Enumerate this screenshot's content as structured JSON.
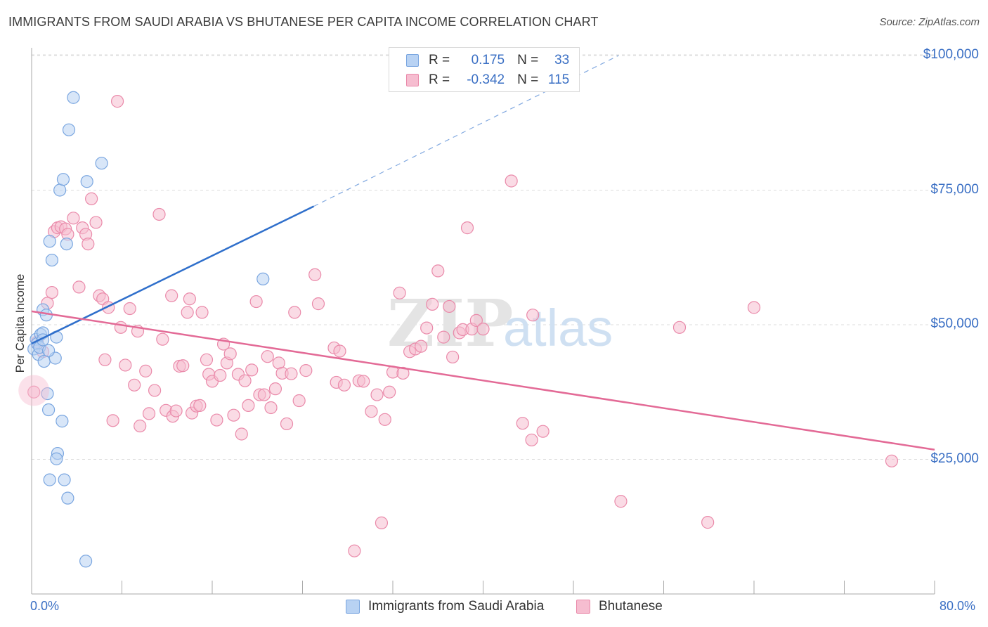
{
  "title": "IMMIGRANTS FROM SAUDI ARABIA VS BHUTANESE PER CAPITA INCOME CORRELATION CHART",
  "source": "Source: ZipAtlas.com",
  "watermark": {
    "zip": "ZIP",
    "atlas": "atlas"
  },
  "colors": {
    "series1_fill": "#b8d2f3",
    "series1_stroke": "#7aa6e0",
    "series1_line": "#2f6fcb",
    "series2_fill": "#f6bdd0",
    "series2_stroke": "#ea8aaa",
    "series2_line": "#e36a96",
    "tick_text": "#3a6fc4",
    "grid": "#dddddd"
  },
  "legend": {
    "rows": [
      {
        "r_label": "R =",
        "r_value": "0.175",
        "n_label": "N =",
        "n_value": "33"
      },
      {
        "r_label": "R =",
        "r_value": "-0.342",
        "n_label": "N =",
        "n_value": "115"
      }
    ]
  },
  "chart_data": {
    "type": "scatter",
    "title": "IMMIGRANTS FROM SAUDI ARABIA VS BHUTANESE PER CAPITA INCOME CORRELATION CHART",
    "xlabel": "",
    "ylabel": "Per Capita Income",
    "xlim": [
      0,
      80
    ],
    "ylim": [
      0,
      105000
    ],
    "x_tick_labels": [
      "0.0%",
      "80.0%"
    ],
    "y_ticks": [
      25000,
      50000,
      75000,
      100000
    ],
    "y_tick_labels": [
      "$25,000",
      "$50,000",
      "$75,000",
      "$100,000"
    ],
    "grid": true,
    "legend_position": "top-center",
    "series": [
      {
        "name": "Immigrants from Saudi Arabia",
        "r": 0.175,
        "n": 33,
        "trend": {
          "x0": 0,
          "y0": 46500,
          "x1_solid": 25,
          "y1_solid": 72000,
          "x1_dashed": 52,
          "y1_dashed": 100000
        },
        "points": [
          [
            0.2,
            45500
          ],
          [
            0.4,
            47300
          ],
          [
            0.5,
            46500
          ],
          [
            0.6,
            44500
          ],
          [
            0.7,
            45800
          ],
          [
            0.8,
            48200
          ],
          [
            1.0,
            48500
          ],
          [
            1.0,
            47200
          ],
          [
            1.0,
            52800
          ],
          [
            1.1,
            43200
          ],
          [
            1.3,
            51800
          ],
          [
            1.4,
            37200
          ],
          [
            1.5,
            34200
          ],
          [
            1.6,
            65500
          ],
          [
            1.8,
            62000
          ],
          [
            1.6,
            21200
          ],
          [
            2.1,
            43800
          ],
          [
            2.2,
            47700
          ],
          [
            2.3,
            26100
          ],
          [
            2.2,
            25100
          ],
          [
            2.5,
            75000
          ],
          [
            2.8,
            77000
          ],
          [
            2.7,
            32100
          ],
          [
            2.9,
            21200
          ],
          [
            3.1,
            65000
          ],
          [
            3.2,
            17800
          ],
          [
            3.3,
            86200
          ],
          [
            3.7,
            92200
          ],
          [
            4.9,
            76600
          ],
          [
            6.2,
            80000
          ],
          [
            4.8,
            6100
          ],
          [
            20.5,
            58500
          ],
          [
            1.5,
            45200
          ]
        ]
      },
      {
        "name": "Bhutanese",
        "r": -0.342,
        "n": 115,
        "trend": {
          "x0": 0,
          "y0": 52500,
          "x1": 80,
          "y1": 26800
        },
        "points": [
          [
            0.2,
            37500
          ],
          [
            0.5,
            46800
          ],
          [
            1.0,
            45000
          ],
          [
            1.4,
            54000
          ],
          [
            1.8,
            56000
          ],
          [
            2.0,
            67300
          ],
          [
            2.3,
            68000
          ],
          [
            2.6,
            68200
          ],
          [
            3.0,
            67800
          ],
          [
            3.2,
            66800
          ],
          [
            3.7,
            69800
          ],
          [
            4.2,
            57000
          ],
          [
            4.5,
            68000
          ],
          [
            4.8,
            66800
          ],
          [
            5.0,
            65000
          ],
          [
            5.3,
            73400
          ],
          [
            5.7,
            69000
          ],
          [
            6.0,
            55400
          ],
          [
            6.3,
            54800
          ],
          [
            6.5,
            43500
          ],
          [
            6.8,
            53200
          ],
          [
            7.2,
            32200
          ],
          [
            7.6,
            91500
          ],
          [
            7.9,
            49500
          ],
          [
            8.3,
            42500
          ],
          [
            8.7,
            53000
          ],
          [
            9.1,
            38800
          ],
          [
            9.4,
            48800
          ],
          [
            9.6,
            31200
          ],
          [
            10.1,
            41400
          ],
          [
            10.4,
            33500
          ],
          [
            10.9,
            37800
          ],
          [
            11.3,
            70500
          ],
          [
            11.6,
            47300
          ],
          [
            11.9,
            34100
          ],
          [
            12.4,
            55400
          ],
          [
            12.5,
            33000
          ],
          [
            12.8,
            34000
          ],
          [
            13.1,
            42300
          ],
          [
            13.4,
            42400
          ],
          [
            13.8,
            52300
          ],
          [
            14.0,
            54800
          ],
          [
            14.2,
            33600
          ],
          [
            14.6,
            34900
          ],
          [
            14.9,
            35000
          ],
          [
            15.1,
            52300
          ],
          [
            15.5,
            43500
          ],
          [
            15.7,
            40800
          ],
          [
            16.0,
            39500
          ],
          [
            16.4,
            32300
          ],
          [
            16.7,
            40600
          ],
          [
            17.0,
            46400
          ],
          [
            17.3,
            42900
          ],
          [
            17.6,
            44600
          ],
          [
            17.9,
            33200
          ],
          [
            18.3,
            40800
          ],
          [
            18.6,
            29700
          ],
          [
            18.9,
            39600
          ],
          [
            19.2,
            35000
          ],
          [
            19.5,
            41600
          ],
          [
            19.9,
            54300
          ],
          [
            20.2,
            37000
          ],
          [
            20.6,
            37000
          ],
          [
            20.9,
            44100
          ],
          [
            21.2,
            34600
          ],
          [
            21.6,
            38100
          ],
          [
            21.9,
            42900
          ],
          [
            22.2,
            41000
          ],
          [
            22.6,
            31600
          ],
          [
            23.0,
            40900
          ],
          [
            23.3,
            52300
          ],
          [
            23.7,
            35900
          ],
          [
            24.3,
            41500
          ],
          [
            25.1,
            59300
          ],
          [
            25.4,
            53900
          ],
          [
            26.8,
            45700
          ],
          [
            27.0,
            39300
          ],
          [
            27.3,
            45100
          ],
          [
            27.7,
            38800
          ],
          [
            28.6,
            8000
          ],
          [
            29.0,
            39600
          ],
          [
            29.4,
            39500
          ],
          [
            30.1,
            33900
          ],
          [
            30.6,
            37000
          ],
          [
            31.0,
            13200
          ],
          [
            31.3,
            32400
          ],
          [
            31.7,
            37500
          ],
          [
            32.0,
            41200
          ],
          [
            32.6,
            55900
          ],
          [
            32.9,
            41000
          ],
          [
            33.5,
            45000
          ],
          [
            34.0,
            45500
          ],
          [
            34.5,
            46000
          ],
          [
            35.0,
            49400
          ],
          [
            35.5,
            53800
          ],
          [
            36.0,
            60000
          ],
          [
            36.5,
            47700
          ],
          [
            37.0,
            53400
          ],
          [
            37.3,
            44000
          ],
          [
            37.9,
            48500
          ],
          [
            38.2,
            49100
          ],
          [
            38.6,
            68000
          ],
          [
            39.0,
            49200
          ],
          [
            39.4,
            50800
          ],
          [
            40.0,
            49200
          ],
          [
            42.5,
            76700
          ],
          [
            43.5,
            31700
          ],
          [
            44.3,
            28600
          ],
          [
            44.4,
            51800
          ],
          [
            45.3,
            30200
          ],
          [
            52.2,
            17200
          ],
          [
            57.4,
            49500
          ],
          [
            59.9,
            13300
          ],
          [
            64.0,
            53200
          ],
          [
            76.2,
            24700
          ]
        ]
      }
    ]
  },
  "bottom_legend": [
    {
      "label": "Immigrants from Saudi Arabia"
    },
    {
      "label": "Bhutanese"
    }
  ]
}
